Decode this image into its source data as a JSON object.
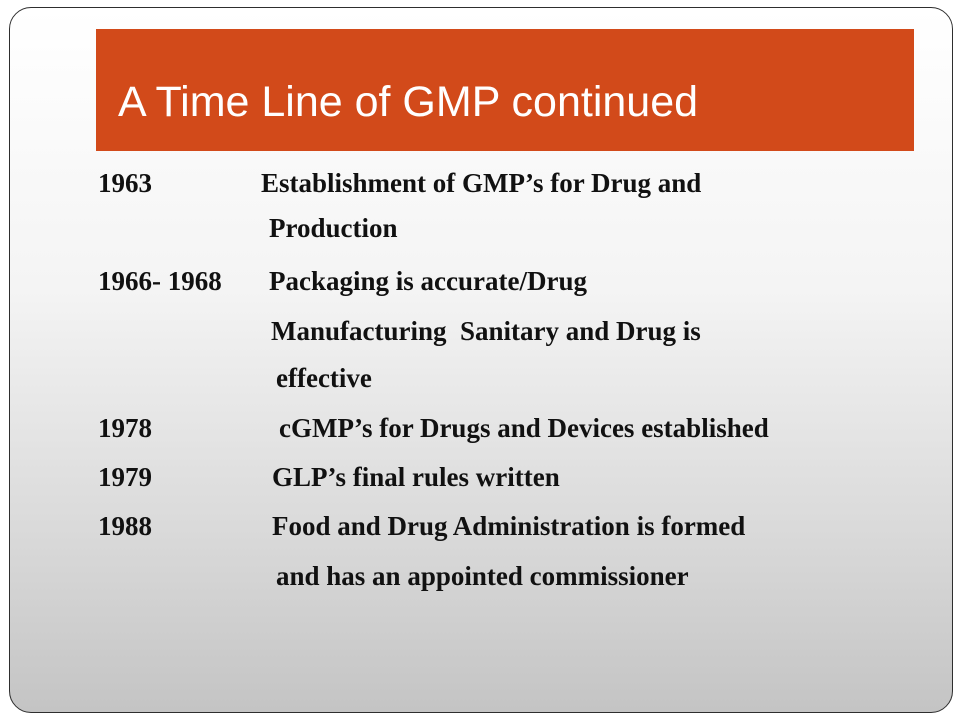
{
  "slide": {
    "title": "A Time Line of GMP continued",
    "accent_color": "#d24a1a"
  },
  "timeline": [
    {
      "year": "1963",
      "lines": [
        "Establishment of GMP’s for Drug and",
        "Production"
      ]
    },
    {
      "year": "1966- 1968",
      "lines": [
        "Packaging is accurate/Drug",
        "Manufacturing  Sanitary and Drug is",
        "effective"
      ]
    },
    {
      "year": "1978",
      "lines": [
        "cGMP’s for Drugs and Devices established"
      ]
    },
    {
      "year": "1979",
      "lines": [
        "GLP’s final rules written"
      ]
    },
    {
      "year": "1988",
      "lines": [
        "Food and Drug Administration is formed",
        "and has an appointed commissioner"
      ]
    }
  ]
}
